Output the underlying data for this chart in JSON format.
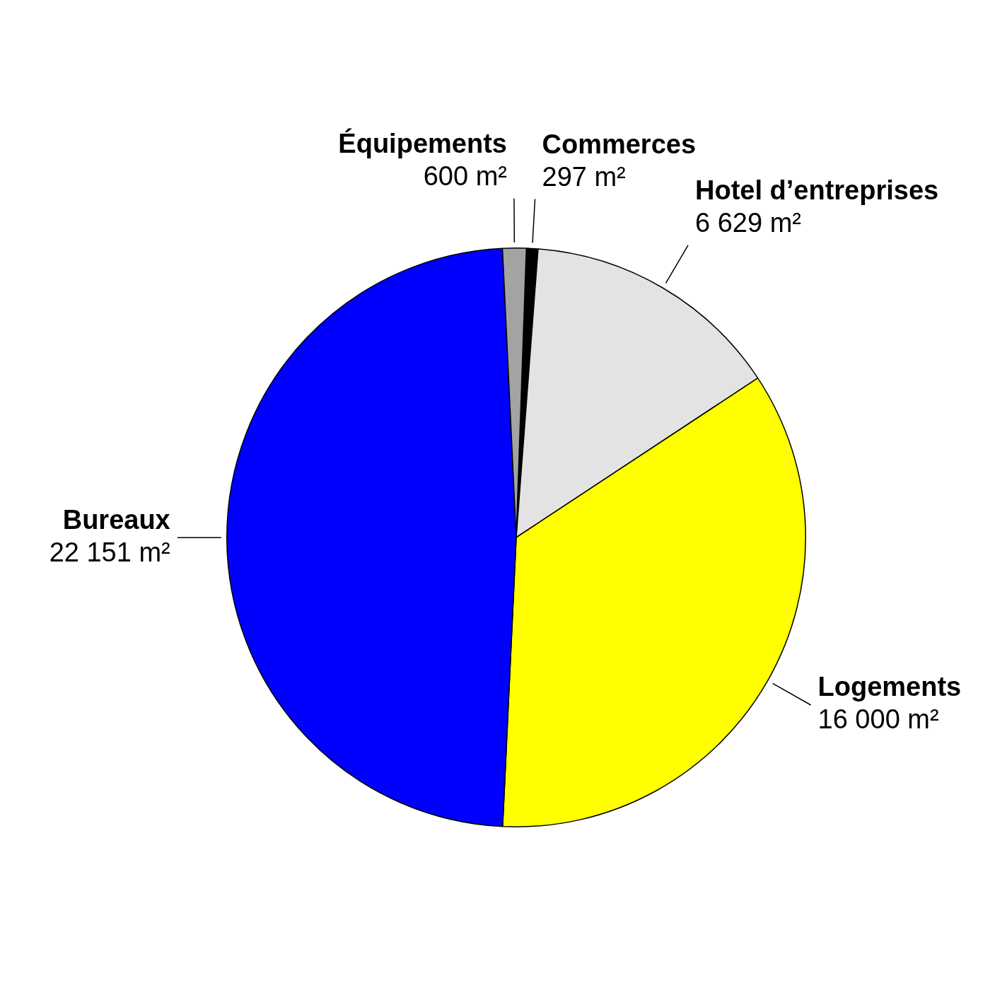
{
  "chart_data": {
    "type": "pie",
    "categories": [
      "Commerces",
      "Hotel d’entreprises",
      "Logements",
      "Bureaux",
      "Équipements"
    ],
    "values": [
      297,
      6629,
      16000,
      22151,
      600
    ],
    "value_labels": [
      "297 m²",
      "6 629 m²",
      "16 000 m²",
      "22 151 m²",
      "600 m²"
    ],
    "colors": [
      "#000000",
      "#e3e3e3",
      "#ffff00",
      "#0000ff",
      "#a3a3a3"
    ],
    "legend": false
  }
}
